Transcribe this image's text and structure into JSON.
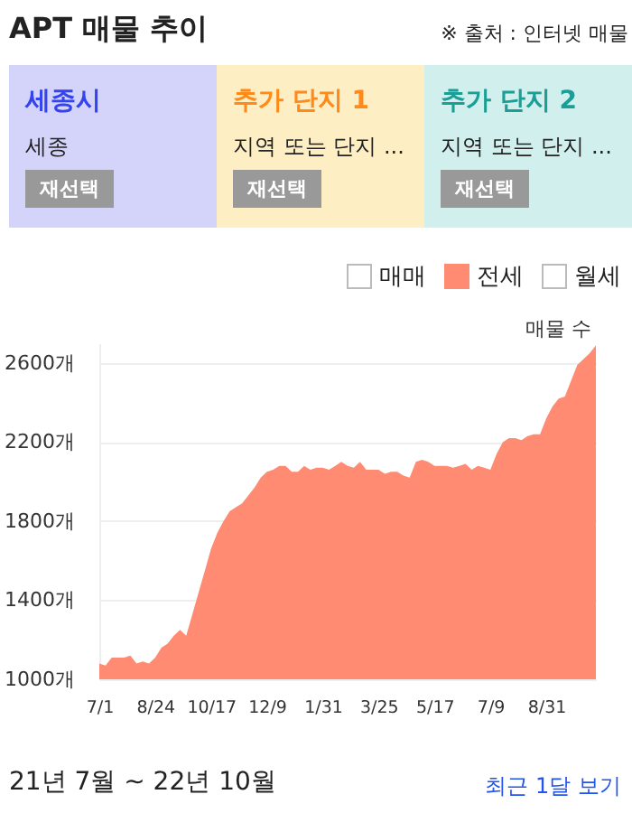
{
  "chart_data": {
    "type": "area",
    "title": "APT 매물 추이",
    "ylabel": "매물 수",
    "annotations": [
      "※ 출처 : 인터넷 매물",
      "세종시",
      "세종",
      "재선택",
      "추가 단지 1",
      "지역 또는 단지 ...",
      "재선택",
      "추가 단지 2",
      "지역 또는 단지 ...",
      "재선택",
      "매매",
      "월세",
      "21년 7월 ~ 22년 10월",
      "최근 1달 보기"
    ],
    "categories": [
      "7/1",
      null,
      null,
      null,
      null,
      null,
      null,
      null,
      null,
      "8/24",
      null,
      null,
      null,
      null,
      null,
      null,
      null,
      null,
      "10/17",
      null,
      null,
      null,
      null,
      null,
      null,
      null,
      null,
      "12/9",
      null,
      null,
      null,
      null,
      null,
      null,
      null,
      null,
      "1/31",
      null,
      null,
      null,
      null,
      null,
      null,
      null,
      null,
      "3/25",
      null,
      null,
      null,
      null,
      null,
      null,
      null,
      null,
      "5/17",
      null,
      null,
      null,
      null,
      null,
      null,
      null,
      null,
      "7/9",
      null,
      null,
      null,
      null,
      null,
      null,
      null,
      null,
      "8/31",
      null,
      null,
      null,
      null,
      null,
      null,
      null,
      null
    ],
    "series": [
      {
        "name": "전세",
        "color": "#ff8b72",
        "values": [
          1080,
          1070,
          1110,
          1110,
          1110,
          1120,
          1080,
          1090,
          1080,
          1110,
          1160,
          1180,
          1220,
          1250,
          1220,
          1330,
          1440,
          1550,
          1660,
          1740,
          1800,
          1850,
          1870,
          1890,
          1930,
          1970,
          2020,
          2050,
          2060,
          2080,
          2080,
          2050,
          2050,
          2080,
          2060,
          2070,
          2070,
          2060,
          2080,
          2100,
          2080,
          2070,
          2100,
          2060,
          2060,
          2060,
          2040,
          2050,
          2050,
          2030,
          2020,
          2100,
          2110,
          2100,
          2080,
          2080,
          2080,
          2070,
          2080,
          2090,
          2060,
          2080,
          2070,
          2060,
          2140,
          2200,
          2220,
          2220,
          2210,
          2230,
          2240,
          2240,
          2320,
          2380,
          2420,
          2430,
          2510,
          2590,
          2620,
          2650,
          2690
        ]
      }
    ],
    "ylim": [
      1000,
      2700
    ],
    "yticks": [
      {
        "value": 1000,
        "label": "1000개"
      },
      {
        "value": 1400,
        "label": "1400개"
      },
      {
        "value": 1800,
        "label": "1800개"
      },
      {
        "value": 2200,
        "label": "2200개"
      },
      {
        "value": 2600,
        "label": "2600개"
      }
    ],
    "grid": "y",
    "legend": "top right"
  }
}
